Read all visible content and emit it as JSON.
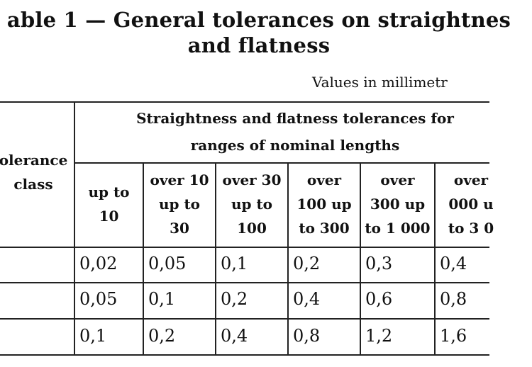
{
  "title": {
    "line1": "able 1 — General tolerances on straightnes",
    "line2": "and flatness"
  },
  "note": "Values in millimetr",
  "table": {
    "group_header": {
      "line1": "Straightness and flatness tolerances for",
      "line2": "ranges of nominal lengths"
    },
    "class_header": {
      "line1": "olerance",
      "line2": "class"
    },
    "columns": [
      {
        "line1": "up to",
        "line2": "10",
        "line3": ""
      },
      {
        "line1": "over 10",
        "line2": "up to",
        "line3": "30"
      },
      {
        "line1": "over 30",
        "line2": "up to",
        "line3": "100"
      },
      {
        "line1": "over",
        "line2": "100 up",
        "line3": "to 300"
      },
      {
        "line1": "over",
        "line2": "300 up",
        "line3": "to 1 000"
      },
      {
        "line1": "over",
        "line2": "000 u",
        "line3": "to 3 0"
      }
    ],
    "rows": [
      {
        "class": "",
        "values": [
          "0,02",
          "0,05",
          "0,1",
          "0,2",
          "0,3",
          "0,4"
        ]
      },
      {
        "class": "",
        "values": [
          "0,05",
          "0,1",
          "0,2",
          "0,4",
          "0,6",
          "0,8"
        ]
      },
      {
        "class": "",
        "values": [
          "0,1",
          "0,2",
          "0,4",
          "0,8",
          "1,2",
          "1,6"
        ]
      }
    ]
  }
}
